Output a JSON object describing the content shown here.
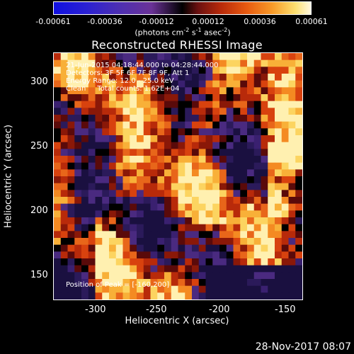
{
  "colorbar": {
    "tick_labels": [
      "-0.00061",
      "-0.00036",
      "-0.00012",
      "0.00012",
      "0.00036",
      "0.00061"
    ],
    "units_prefix": "(photons cm",
    "units_exp1": "-2",
    "units_mid": " s",
    "units_exp2": "-1",
    "units_mid2": " asec",
    "units_exp3": "-2",
    "units_suffix": ")"
  },
  "image": {
    "title": "Reconstructed RHESSI Image",
    "annotations": [
      "21-Jun-2015 04:18:44.000 to 04:28:44.000",
      "Detectors: 3F 5F 6F 7F 8F 9F, Att 1",
      "Energy Range: 12.0 - 25.0 keV",
      "Clean     Total counts: 1.62E+04"
    ],
    "position_text": "Position of Peak = [-160,200]"
  },
  "axes": {
    "x_title": "Heliocentric X (arcsec)",
    "y_title": "Heliocentric Y (arcsec)",
    "x_ticks": [
      "-300",
      "-250",
      "-200",
      "-150"
    ],
    "y_ticks": [
      "300",
      "250",
      "200",
      "150"
    ]
  },
  "footer": {
    "timestamp": "28-Nov-2017 08:07"
  }
}
